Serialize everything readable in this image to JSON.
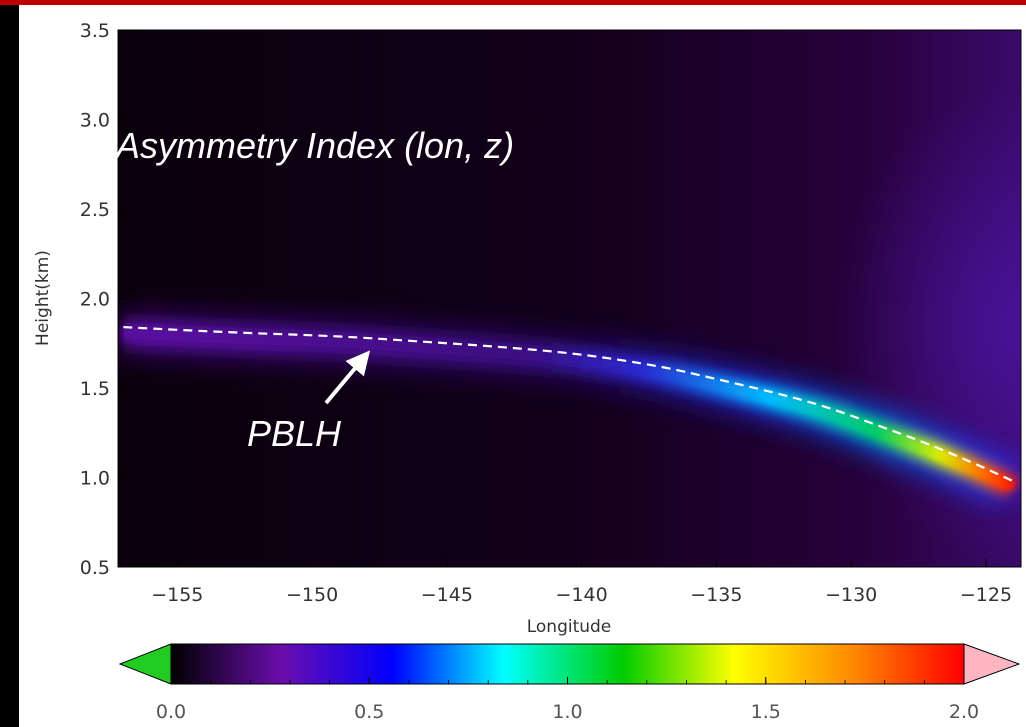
{
  "chart_data": {
    "type": "heatmap",
    "title": "Asymmetry Index (lon, z)",
    "xlabel": "Longitude",
    "ylabel": "Height(km)",
    "xlim": [
      -157.2,
      -123.7
    ],
    "ylim": [
      0.5,
      3.5
    ],
    "x_ticks": [
      -155,
      -150,
      -145,
      -140,
      -135,
      -130,
      -125
    ],
    "x_tick_labels": [
      "−155",
      "−150",
      "−145",
      "−140",
      "−135",
      "−130",
      "−125"
    ],
    "y_ticks": [
      0.5,
      1.0,
      1.5,
      2.0,
      2.5,
      3.0,
      3.5
    ],
    "y_tick_labels": [
      "0.5",
      "1.0",
      "1.5",
      "2.0",
      "2.5",
      "3.0",
      "3.5"
    ],
    "series": [
      {
        "name": "PBLH",
        "style": "dashed white line",
        "x": [
          -157,
          -153,
          -149,
          -146,
          -143,
          -140,
          -137,
          -135,
          -133,
          -131,
          -129,
          -127,
          -125,
          -124
        ],
        "y": [
          1.84,
          1.81,
          1.79,
          1.76,
          1.73,
          1.69,
          1.62,
          1.55,
          1.48,
          1.4,
          1.29,
          1.18,
          1.05,
          0.98
        ]
      }
    ],
    "colorbar": {
      "min": 0.0,
      "max": 2.0,
      "ticks": [
        0.0,
        0.5,
        1.0,
        1.5,
        2.0
      ],
      "tick_labels": [
        "0.0",
        "0.5",
        "1.0",
        "1.5",
        "2.0"
      ],
      "extend": "both",
      "under_color": "#22cc22",
      "over_color": "#ffb6c1",
      "colormap": [
        "#000000",
        "#6a0dad",
        "#0000ff",
        "#00ffff",
        "#00cc00",
        "#ffff00",
        "#ff8800",
        "#ff0000"
      ]
    },
    "grid": false
  },
  "colors": {
    "frame_top": "#c00000",
    "frame_left": "#000000",
    "annotation_text": "#ffffff",
    "pblh_line": "#ffffff"
  },
  "annotation": {
    "label": "PBLH",
    "arrow_color": "#ffffff"
  }
}
